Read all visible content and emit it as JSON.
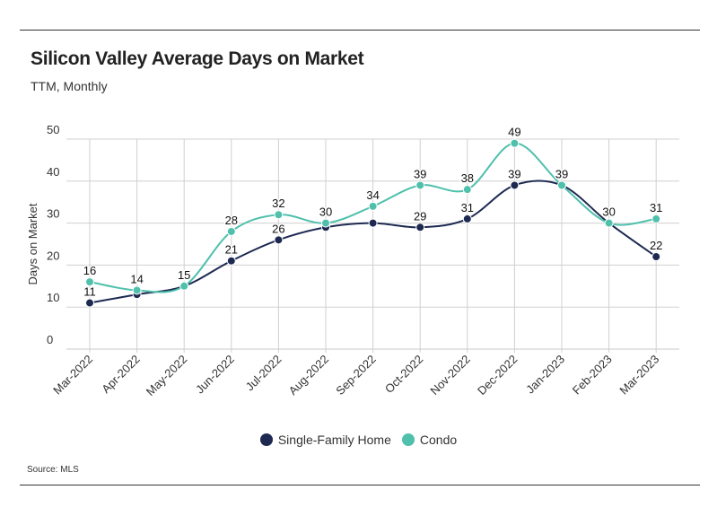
{
  "header": {
    "title": "Silicon Valley Average Days on Market",
    "subtitle": "TTM, Monthly"
  },
  "footer": {
    "source": "Source: MLS"
  },
  "colors": {
    "single_family": "#1d2951",
    "condo": "#4fc0ac",
    "grid": "#d0d0d0",
    "rule": "#333333"
  },
  "chart_data": {
    "type": "line",
    "title": "Silicon Valley Average Days on Market",
    "subtitle": "TTM, Monthly",
    "xlabel": "",
    "ylabel": "Days on Market",
    "ylim": [
      0,
      50
    ],
    "yticks": [
      0,
      10,
      20,
      30,
      40,
      50
    ],
    "grid": true,
    "legend_position": "bottom",
    "categories": [
      "Mar-2022",
      "Apr-2022",
      "May-2022",
      "Jun-2022",
      "Jul-2022",
      "Aug-2022",
      "Sep-2022",
      "Oct-2022",
      "Nov-2022",
      "Dec-2022",
      "Jan-2023",
      "Feb-2023",
      "Mar-2023"
    ],
    "series": [
      {
        "name": "Single-Family Home",
        "color": "#1d2951",
        "values": [
          11,
          13,
          15,
          21,
          26,
          29,
          30,
          29,
          31,
          39,
          39,
          30,
          22
        ],
        "labels": [
          "11",
          "",
          "",
          "21",
          "26",
          "",
          "",
          "29",
          "31",
          "39",
          "",
          "",
          "22"
        ]
      },
      {
        "name": "Condo",
        "color": "#4fc0ac",
        "values": [
          16,
          14,
          15,
          28,
          32,
          30,
          34,
          39,
          38,
          49,
          39,
          30,
          31
        ],
        "labels": [
          "16",
          "14",
          "15",
          "28",
          "32",
          "30",
          "34",
          "39",
          "38",
          "49",
          "39",
          "30",
          "31"
        ]
      }
    ]
  }
}
